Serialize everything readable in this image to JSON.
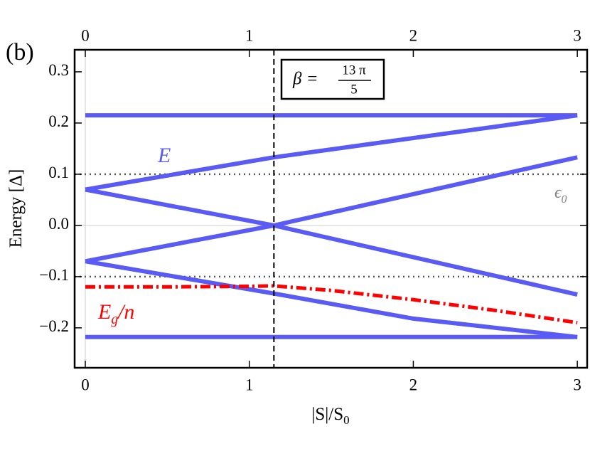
{
  "chart_data": {
    "type": "line",
    "panel_label": "(b)",
    "ylabel": "Energy [Δ]",
    "xlabel": {
      "text": "|S|/S",
      "sub": "0"
    },
    "beta_box": {
      "lhs": "β =",
      "numerator": "13 π",
      "denominator": "5"
    },
    "annotations": [
      {
        "text": "E",
        "color": "#5a5af5"
      },
      {
        "text": "E",
        "sub": "g",
        "rest": "/n",
        "color": "#ff0000"
      },
      {
        "text": "ϵ",
        "sub": "0",
        "color": "#808080"
      }
    ],
    "xlim": [
      -0.065,
      3.06
    ],
    "ylim": [
      -0.278,
      0.343
    ],
    "xticks": [
      0,
      1,
      2,
      3
    ],
    "yticks": [
      -0.2,
      {
        "value": -0.1,
        "label": "−0.1"
      },
      {
        "value": 0,
        "label": "0.0"
      },
      0.1,
      0.2,
      0.3
    ],
    "yticklabels_shown": [
      {
        "value": -0.2,
        "label": "−0.2"
      }
    ],
    "series": [
      {
        "color": "#5a5af5",
        "style": "solid",
        "x": [
          0,
          3
        ],
        "values": [
          0.215,
          0.215
        ]
      },
      {
        "color": "#5a5af5",
        "style": "solid",
        "x": [
          0,
          3
        ],
        "values": [
          -0.218,
          -0.218
        ]
      },
      {
        "color": "#5a5af5",
        "style": "solid",
        "x": [
          0,
          1.15,
          3
        ],
        "values": [
          0.07,
          0.133,
          0.215
        ]
      },
      {
        "color": "#5a5af5",
        "style": "solid",
        "x": [
          0,
          1.15,
          3
        ],
        "values": [
          0.07,
          0,
          -0.135
        ]
      },
      {
        "color": "#5a5af5",
        "style": "solid",
        "x": [
          0,
          1.15,
          3
        ],
        "values": [
          -0.07,
          0,
          0.133
        ]
      },
      {
        "color": "#5a5af5",
        "style": "solid",
        "x": [
          0,
          1.15,
          2,
          3
        ],
        "values": [
          -0.07,
          -0.133,
          -0.182,
          -0.218
        ]
      },
      {
        "color": "#ff0000",
        "style": "dashdot",
        "x": [
          0,
          0.5,
          1,
          1.15,
          1.5,
          2,
          2.5,
          3
        ],
        "values": [
          -0.12,
          -0.12,
          -0.119,
          -0.118,
          -0.127,
          -0.145,
          -0.166,
          -0.19
        ]
      }
    ],
    "hlines": [
      {
        "value": 0.1,
        "style": "dotted"
      },
      {
        "value": -0.1,
        "style": "dotted"
      }
    ],
    "vline": {
      "value": 1.15,
      "style": "dashed"
    }
  }
}
